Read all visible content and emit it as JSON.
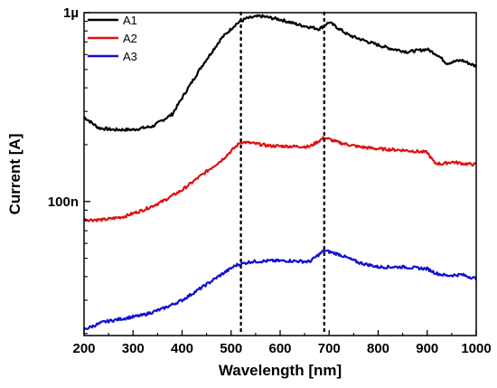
{
  "chart_data": {
    "type": "line",
    "title": "",
    "xlabel": "Wavelength [nm]",
    "ylabel": "Current [A]",
    "xscale": "linear",
    "yscale": "log",
    "xlim": [
      200,
      1000
    ],
    "ylim": [
      1.95e-08,
      1e-06
    ],
    "xticks": [
      200,
      300,
      400,
      500,
      600,
      700,
      800,
      900,
      1000
    ],
    "xtick_labels": [
      "200",
      "300",
      "400",
      "500",
      "600",
      "700",
      "800",
      "900",
      "1000"
    ],
    "yticks": [
      1e-07,
      1e-06
    ],
    "ytick_labels": [
      "100n",
      "1µ"
    ],
    "grid": false,
    "legend_position": "top-left",
    "vlines": [
      520,
      690
    ],
    "series": [
      {
        "name": "A1",
        "color": "#000000",
        "x": [
          200,
          230,
          260,
          300,
          340,
          380,
          410,
          440,
          480,
          510,
          530,
          560,
          600,
          640,
          680,
          700,
          740,
          780,
          820,
          860,
          900,
          920,
          940,
          970,
          1000
        ],
        "values": [
          2.8e-07,
          2.45e-07,
          2.4e-07,
          2.4e-07,
          2.5e-07,
          2.9e-07,
          3.9e-07,
          5.2e-07,
          7.3e-07,
          8.7e-07,
          9.3e-07,
          9.6e-07,
          9.2e-07,
          8.6e-07,
          8.2e-07,
          8.9e-07,
          7.6e-07,
          7e-07,
          6.5e-07,
          6.2e-07,
          6.4e-07,
          6e-07,
          5.4e-07,
          5.6e-07,
          5.2e-07
        ]
      },
      {
        "name": "A2",
        "color": "#e01010",
        "x": [
          200,
          240,
          280,
          320,
          360,
          400,
          440,
          480,
          500,
          520,
          540,
          580,
          620,
          660,
          690,
          720,
          760,
          800,
          850,
          900,
          915,
          930,
          950,
          980,
          1000
        ],
        "values": [
          8e-08,
          8e-08,
          8.3e-08,
          9e-08,
          1e-07,
          1.15e-07,
          1.38e-07,
          1.65e-07,
          1.85e-07,
          2.07e-07,
          2.04e-07,
          1.97e-07,
          1.96e-07,
          1.95e-07,
          2.18e-07,
          2.05e-07,
          1.95e-07,
          1.9e-07,
          1.87e-07,
          1.82e-07,
          1.6e-07,
          1.58e-07,
          1.62e-07,
          1.58e-07,
          1.57e-07
        ]
      },
      {
        "name": "A3",
        "color": "#1010d0",
        "x": [
          200,
          240,
          280,
          320,
          360,
          400,
          440,
          480,
          510,
          540,
          580,
          620,
          660,
          690,
          720,
          760,
          800,
          850,
          900,
          920,
          940,
          970,
          1000
        ],
        "values": [
          2.1e-08,
          2.3e-08,
          2.4e-08,
          2.5e-08,
          2.7e-08,
          3e-08,
          3.5e-08,
          4.1e-08,
          4.6e-08,
          4.8e-08,
          4.85e-08,
          4.85e-08,
          4.8e-08,
          5.5e-08,
          5.25e-08,
          4.75e-08,
          4.5e-08,
          4.5e-08,
          4.4e-08,
          4.15e-08,
          4.05e-08,
          4.1e-08,
          3.9e-08
        ]
      }
    ]
  }
}
